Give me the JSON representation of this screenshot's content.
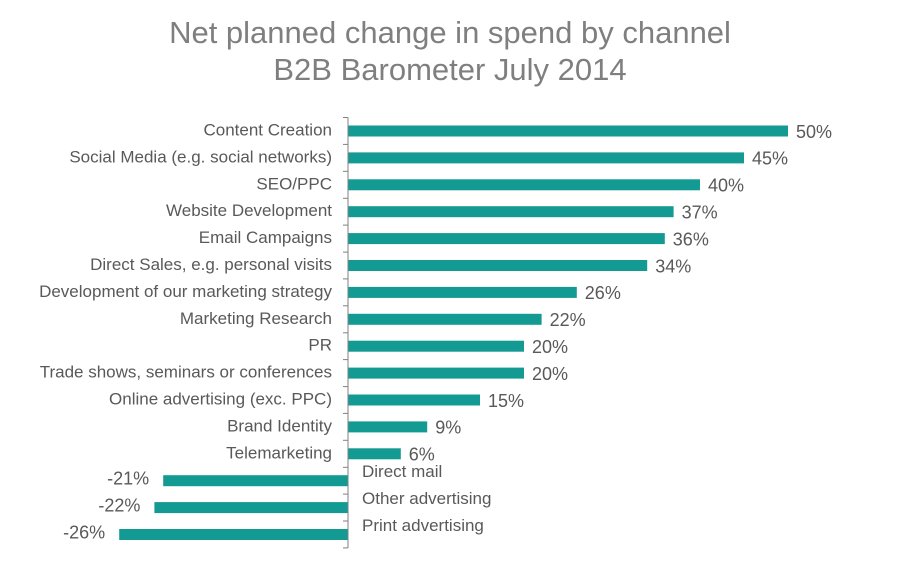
{
  "chart_data": {
    "type": "bar",
    "orientation": "horizontal",
    "title": "Net planned change in spend by channel",
    "subtitle": "B2B Barometer July 2014",
    "categories": [
      "Content Creation",
      "Social Media (e.g. social networks)",
      "SEO/PPC",
      "Website Development",
      "Email Campaigns",
      "Direct Sales, e.g. personal visits",
      "Development of our marketing strategy",
      "Marketing Research",
      "PR",
      "Trade shows, seminars or conferences",
      "Online advertising (exc. PPC)",
      "Brand Identity",
      "Telemarketing",
      "Direct mail",
      "Other advertising",
      "Print advertising"
    ],
    "values": [
      50,
      45,
      40,
      37,
      36,
      34,
      26,
      22,
      20,
      20,
      15,
      9,
      6,
      -21,
      -22,
      -26
    ],
    "value_labels": [
      "50%",
      "45%",
      "40%",
      "37%",
      "36%",
      "34%",
      "26%",
      "22%",
      "20%",
      "20%",
      "15%",
      "9%",
      "6%",
      "-21%",
      "-22%",
      "-26%"
    ],
    "unit": "%",
    "xlim": [
      -26,
      50
    ],
    "grid": false,
    "legend": "none",
    "bar_color": "#139a93"
  }
}
